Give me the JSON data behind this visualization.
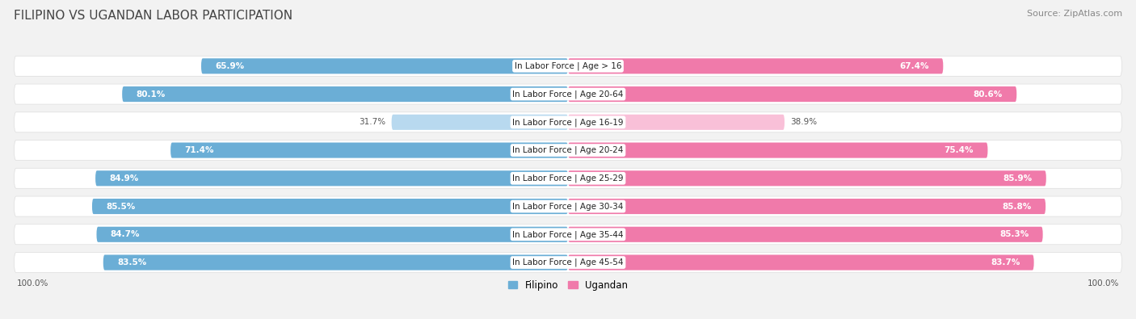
{
  "title": "FILIPINO VS UGANDAN LABOR PARTICIPATION",
  "source": "Source: ZipAtlas.com",
  "categories": [
    "In Labor Force | Age > 16",
    "In Labor Force | Age 20-64",
    "In Labor Force | Age 16-19",
    "In Labor Force | Age 20-24",
    "In Labor Force | Age 25-29",
    "In Labor Force | Age 30-34",
    "In Labor Force | Age 35-44",
    "In Labor Force | Age 45-54"
  ],
  "filipino_values": [
    65.9,
    80.1,
    31.7,
    71.4,
    84.9,
    85.5,
    84.7,
    83.5
  ],
  "ugandan_values": [
    67.4,
    80.6,
    38.9,
    75.4,
    85.9,
    85.8,
    85.3,
    83.7
  ],
  "filipino_color": "#6baed6",
  "ugandan_color": "#f07aaa",
  "filipino_color_light": "#b8d9ef",
  "ugandan_color_light": "#f9c0d8",
  "row_bg_color": "#ffffff",
  "bg_color": "#f2f2f2",
  "title_fontsize": 11,
  "source_fontsize": 8,
  "label_fontsize": 7.5,
  "value_fontsize": 7.5,
  "legend_fontsize": 8.5,
  "axis_label_fontsize": 7.5,
  "max_val": 100.0
}
